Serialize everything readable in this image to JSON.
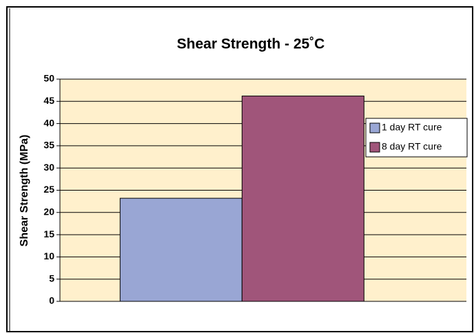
{
  "chart_data": {
    "type": "bar",
    "title": "Shear Strength - 25˚C",
    "y_label": "Shear Strength (MPa)",
    "categories": [
      null
    ],
    "series": [
      {
        "name": "1 day RT cure",
        "color": "#99a6d4",
        "values": [
          23.2
        ]
      },
      {
        "name": "8 day RT cure",
        "color": "#a0557a",
        "values": [
          46.2
        ]
      }
    ],
    "ylim": [
      0,
      50
    ],
    "yticks": [
      0,
      5,
      10,
      15,
      20,
      25,
      30,
      35,
      40,
      45,
      50
    ],
    "grid": true,
    "legend": "right",
    "plot_background": "#fff0cc"
  }
}
